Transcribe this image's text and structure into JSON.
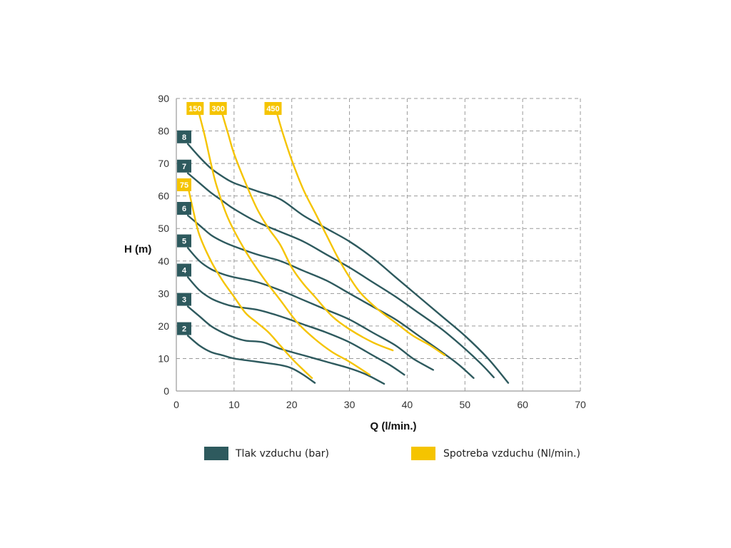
{
  "chart_data": {
    "type": "line",
    "xlabel": "Q (l/min.)",
    "ylabel": "H (m)",
    "xlim": [
      0,
      70
    ],
    "ylim": [
      0,
      90
    ],
    "x_ticks": [
      0,
      10,
      20,
      30,
      40,
      50,
      60,
      70
    ],
    "y_ticks": [
      0,
      10,
      20,
      30,
      40,
      50,
      60,
      70,
      80,
      90
    ],
    "grid": true,
    "legend_position": "bottom",
    "legend": [
      {
        "label": "Tlak vzduchu (bar)",
        "color": "#2e5a5e"
      },
      {
        "label": "Spotreba vzduchu (Nl/min.)",
        "color": "#f5c400"
      }
    ],
    "pressure_series": [
      {
        "label": "2",
        "color": "#2e5a5e",
        "points": [
          [
            2,
            17
          ],
          [
            4,
            14
          ],
          [
            6,
            12
          ],
          [
            8,
            11
          ],
          [
            10,
            10
          ],
          [
            14,
            9
          ],
          [
            18,
            8
          ],
          [
            20,
            7
          ],
          [
            22,
            5
          ],
          [
            24,
            2.5
          ]
        ]
      },
      {
        "label": "3",
        "color": "#2e5a5e",
        "points": [
          [
            2,
            26
          ],
          [
            4,
            23
          ],
          [
            6,
            20
          ],
          [
            8,
            18
          ],
          [
            10,
            16.5
          ],
          [
            12,
            15.5
          ],
          [
            15,
            15
          ],
          [
            18,
            13
          ],
          [
            22,
            11
          ],
          [
            26,
            9
          ],
          [
            30,
            7
          ],
          [
            33,
            5
          ],
          [
            36,
            2.2
          ]
        ]
      },
      {
        "label": "4",
        "color": "#2e5a5e",
        "points": [
          [
            2,
            35
          ],
          [
            4,
            31
          ],
          [
            6,
            28.5
          ],
          [
            8,
            27
          ],
          [
            10,
            26
          ],
          [
            14,
            25
          ],
          [
            18,
            23
          ],
          [
            22,
            20.5
          ],
          [
            26,
            18
          ],
          [
            30,
            15
          ],
          [
            34,
            11
          ],
          [
            37,
            8
          ],
          [
            39.5,
            5
          ]
        ]
      },
      {
        "label": "5",
        "color": "#2e5a5e",
        "points": [
          [
            2,
            44
          ],
          [
            4,
            40
          ],
          [
            6,
            37.5
          ],
          [
            8,
            36
          ],
          [
            10,
            35
          ],
          [
            14,
            33.5
          ],
          [
            18,
            31
          ],
          [
            22,
            28
          ],
          [
            26,
            25
          ],
          [
            30,
            22
          ],
          [
            34,
            18
          ],
          [
            38,
            14
          ],
          [
            41,
            10
          ],
          [
            44.5,
            6.5
          ]
        ]
      },
      {
        "label": "6",
        "color": "#2e5a5e",
        "points": [
          [
            2,
            54
          ],
          [
            4,
            51
          ],
          [
            6,
            48
          ],
          [
            8,
            46
          ],
          [
            10,
            44.5
          ],
          [
            14,
            42
          ],
          [
            18,
            40
          ],
          [
            22,
            37
          ],
          [
            26,
            34
          ],
          [
            30,
            30
          ],
          [
            34,
            26
          ],
          [
            38,
            22
          ],
          [
            42,
            17
          ],
          [
            46,
            12
          ],
          [
            49,
            8
          ],
          [
            51.5,
            4
          ]
        ]
      },
      {
        "label": "7",
        "color": "#2e5a5e",
        "points": [
          [
            2,
            67
          ],
          [
            4,
            64
          ],
          [
            6,
            61
          ],
          [
            8,
            58.5
          ],
          [
            10,
            56
          ],
          [
            14,
            52
          ],
          [
            18,
            49
          ],
          [
            22,
            46
          ],
          [
            26,
            42
          ],
          [
            30,
            38
          ],
          [
            34,
            33.5
          ],
          [
            38,
            29
          ],
          [
            42,
            24
          ],
          [
            46,
            19
          ],
          [
            50,
            13
          ],
          [
            53,
            8
          ],
          [
            55,
            4.2
          ]
        ]
      },
      {
        "label": "8",
        "color": "#2e5a5e",
        "points": [
          [
            2,
            76
          ],
          [
            4,
            72
          ],
          [
            6,
            68.5
          ],
          [
            8,
            66
          ],
          [
            10,
            64
          ],
          [
            14,
            61.5
          ],
          [
            18,
            59
          ],
          [
            22,
            54
          ],
          [
            26,
            50
          ],
          [
            30,
            46
          ],
          [
            34,
            41
          ],
          [
            38,
            35
          ],
          [
            42,
            29
          ],
          [
            46,
            23
          ],
          [
            50,
            17
          ],
          [
            54,
            10
          ],
          [
            57.5,
            2.5
          ]
        ]
      }
    ],
    "consumption_series": [
      {
        "label": "75",
        "color": "#f5c400",
        "points": [
          [
            2,
            63
          ],
          [
            3,
            55
          ],
          [
            4,
            48
          ],
          [
            6,
            40
          ],
          [
            8,
            34
          ],
          [
            10,
            29
          ],
          [
            12,
            24
          ],
          [
            14,
            21
          ],
          [
            16,
            18
          ],
          [
            18,
            14
          ],
          [
            20,
            10
          ],
          [
            22,
            6.5
          ],
          [
            23.5,
            4
          ]
        ]
      },
      {
        "label": "150",
        "color": "#f5c400",
        "points": [
          [
            4,
            85
          ],
          [
            5,
            78
          ],
          [
            6,
            70
          ],
          [
            7,
            63
          ],
          [
            9,
            53
          ],
          [
            12,
            43
          ],
          [
            15,
            35
          ],
          [
            18,
            28
          ],
          [
            21,
            21
          ],
          [
            24,
            16
          ],
          [
            27,
            12
          ],
          [
            30,
            9
          ],
          [
            33.5,
            5
          ]
        ]
      },
      {
        "label": "300",
        "color": "#f5c400",
        "points": [
          [
            8,
            85
          ],
          [
            9,
            79
          ],
          [
            10,
            73
          ],
          [
            12,
            64
          ],
          [
            14,
            56
          ],
          [
            16,
            50
          ],
          [
            18,
            45
          ],
          [
            20,
            38
          ],
          [
            22,
            33
          ],
          [
            24,
            29
          ],
          [
            27,
            23
          ],
          [
            30,
            19
          ],
          [
            34,
            15
          ],
          [
            37.5,
            12.5
          ]
        ]
      },
      {
        "label": "450",
        "color": "#f5c400",
        "points": [
          [
            17.5,
            85
          ],
          [
            18.5,
            79
          ],
          [
            20,
            71
          ],
          [
            22,
            62
          ],
          [
            24,
            55
          ],
          [
            26,
            48
          ],
          [
            28,
            41
          ],
          [
            30,
            35
          ],
          [
            32,
            30
          ],
          [
            35,
            25
          ],
          [
            38,
            21
          ],
          [
            41,
            17
          ],
          [
            44,
            14
          ],
          [
            46.5,
            11
          ]
        ]
      }
    ]
  }
}
